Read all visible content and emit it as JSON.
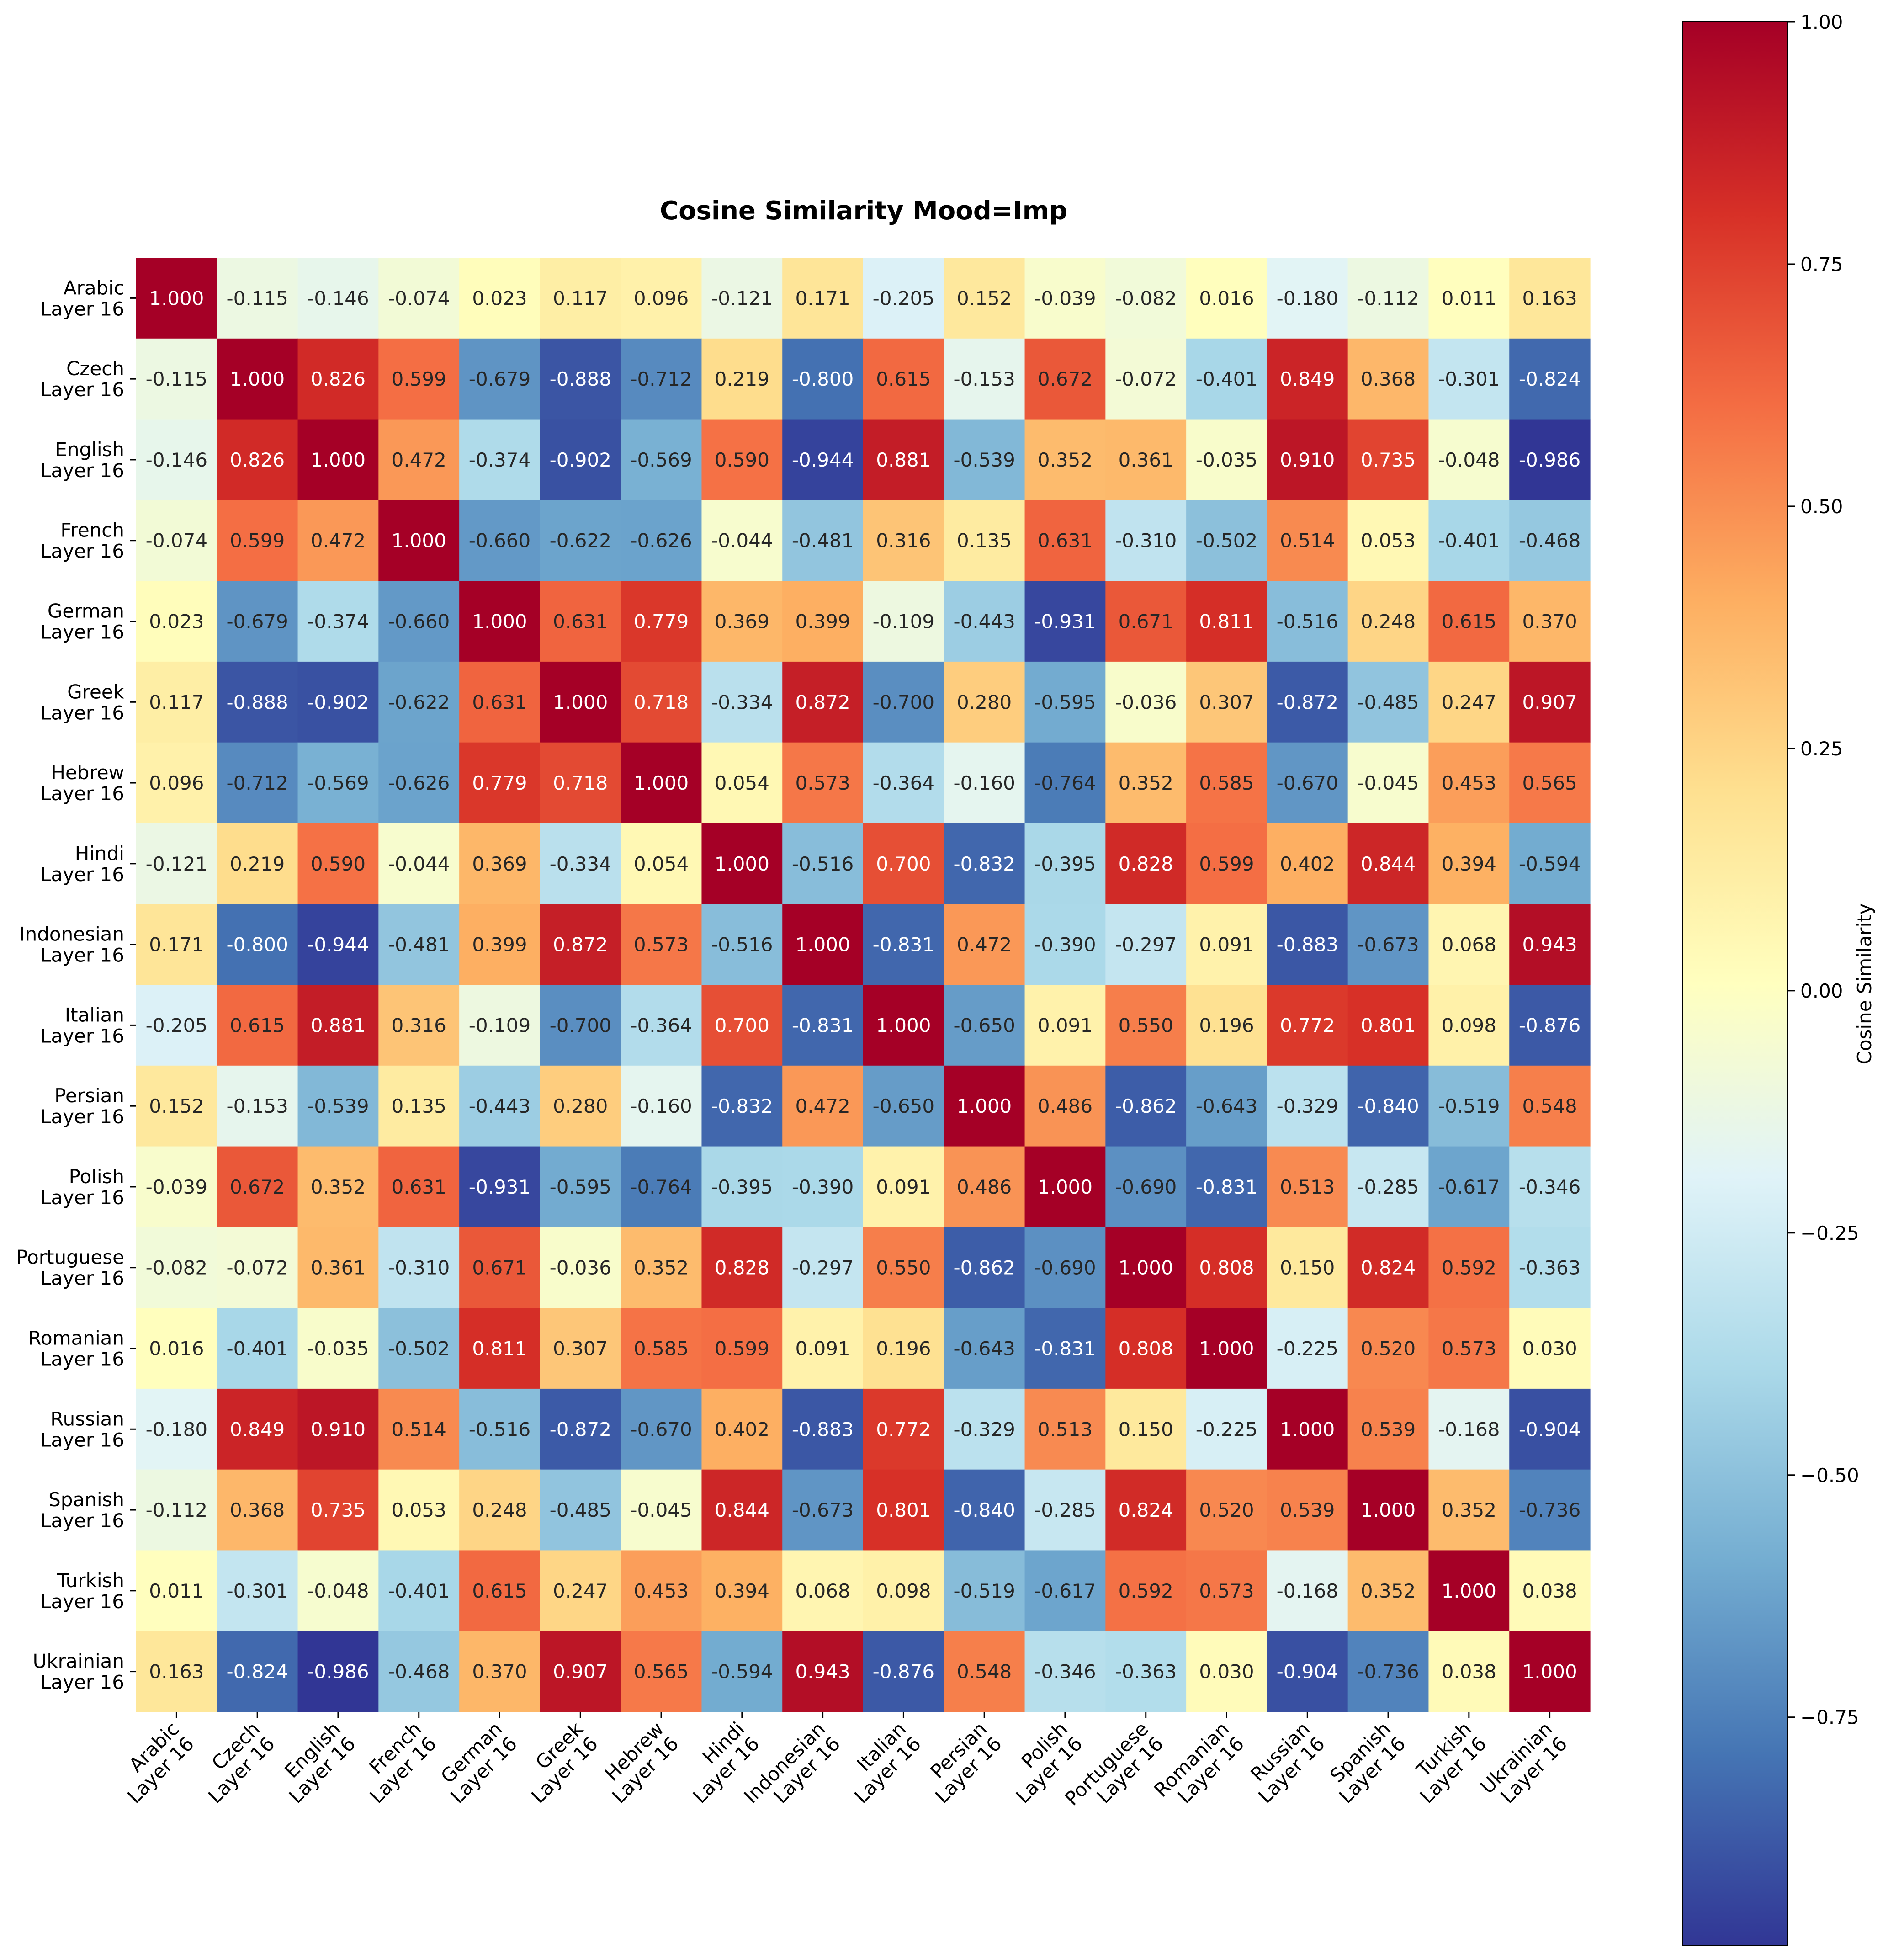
{
  "chart_data": {
    "type": "heatmap",
    "title": "Cosine Similarity Mood=Imp",
    "row_labels": [
      [
        "Arabic",
        "Layer 16"
      ],
      [
        "Czech",
        "Layer 16"
      ],
      [
        "English",
        "Layer 16"
      ],
      [
        "French",
        "Layer 16"
      ],
      [
        "German",
        "Layer 16"
      ],
      [
        "Greek",
        "Layer 16"
      ],
      [
        "Hebrew",
        "Layer 16"
      ],
      [
        "Hindi",
        "Layer 16"
      ],
      [
        "Indonesian",
        "Layer 16"
      ],
      [
        "Italian",
        "Layer 16"
      ],
      [
        "Persian",
        "Layer 16"
      ],
      [
        "Polish",
        "Layer 16"
      ],
      [
        "Portuguese",
        "Layer 16"
      ],
      [
        "Romanian",
        "Layer 16"
      ],
      [
        "Russian",
        "Layer 16"
      ],
      [
        "Spanish",
        "Layer 16"
      ],
      [
        "Turkish",
        "Layer 16"
      ],
      [
        "Ukrainian",
        "Layer 16"
      ]
    ],
    "col_labels": [
      [
        "Arabic",
        "Layer 16"
      ],
      [
        "Czech",
        "Layer 16"
      ],
      [
        "English",
        "Layer 16"
      ],
      [
        "French",
        "Layer 16"
      ],
      [
        "German",
        "Layer 16"
      ],
      [
        "Greek",
        "Layer 16"
      ],
      [
        "Hebrew",
        "Layer 16"
      ],
      [
        "Hindi",
        "Layer 16"
      ],
      [
        "Indonesian",
        "Layer 16"
      ],
      [
        "Italian",
        "Layer 16"
      ],
      [
        "Persian",
        "Layer 16"
      ],
      [
        "Polish",
        "Layer 16"
      ],
      [
        "Portuguese",
        "Layer 16"
      ],
      [
        "Romanian",
        "Layer 16"
      ],
      [
        "Russian",
        "Layer 16"
      ],
      [
        "Spanish",
        "Layer 16"
      ],
      [
        "Turkish",
        "Layer 16"
      ],
      [
        "Ukrainian",
        "Layer 16"
      ]
    ],
    "values": [
      [
        1.0,
        -0.115,
        -0.146,
        -0.074,
        0.023,
        0.117,
        0.096,
        -0.121,
        0.171,
        -0.205,
        0.152,
        -0.039,
        -0.082,
        0.016,
        -0.18,
        -0.112,
        0.011,
        0.163
      ],
      [
        -0.115,
        1.0,
        0.826,
        0.599,
        -0.679,
        -0.888,
        -0.712,
        0.219,
        -0.8,
        0.615,
        -0.153,
        0.672,
        -0.072,
        -0.401,
        0.849,
        0.368,
        -0.301,
        -0.824
      ],
      [
        -0.146,
        0.826,
        1.0,
        0.472,
        -0.374,
        -0.902,
        -0.569,
        0.59,
        -0.944,
        0.881,
        -0.539,
        0.352,
        0.361,
        -0.035,
        0.91,
        0.735,
        -0.048,
        -0.986
      ],
      [
        -0.074,
        0.599,
        0.472,
        1.0,
        -0.66,
        -0.622,
        -0.626,
        -0.044,
        -0.481,
        0.316,
        0.135,
        0.631,
        -0.31,
        -0.502,
        0.514,
        0.053,
        -0.401,
        -0.468
      ],
      [
        0.023,
        -0.679,
        -0.374,
        -0.66,
        1.0,
        0.631,
        0.779,
        0.369,
        0.399,
        -0.109,
        -0.443,
        -0.931,
        0.671,
        0.811,
        -0.516,
        0.248,
        0.615,
        0.37
      ],
      [
        0.117,
        -0.888,
        -0.902,
        -0.622,
        0.631,
        1.0,
        0.718,
        -0.334,
        0.872,
        -0.7,
        0.28,
        -0.595,
        -0.036,
        0.307,
        -0.872,
        -0.485,
        0.247,
        0.907
      ],
      [
        0.096,
        -0.712,
        -0.569,
        -0.626,
        0.779,
        0.718,
        1.0,
        0.054,
        0.573,
        -0.364,
        -0.16,
        -0.764,
        0.352,
        0.585,
        -0.67,
        -0.045,
        0.453,
        0.565
      ],
      [
        -0.121,
        0.219,
        0.59,
        -0.044,
        0.369,
        -0.334,
        0.054,
        1.0,
        -0.516,
        0.7,
        -0.832,
        -0.395,
        0.828,
        0.599,
        0.402,
        0.844,
        0.394,
        -0.594
      ],
      [
        0.171,
        -0.8,
        -0.944,
        -0.481,
        0.399,
        0.872,
        0.573,
        -0.516,
        1.0,
        -0.831,
        0.472,
        -0.39,
        -0.297,
        0.091,
        -0.883,
        -0.673,
        0.068,
        0.943
      ],
      [
        -0.205,
        0.615,
        0.881,
        0.316,
        -0.109,
        -0.7,
        -0.364,
        0.7,
        -0.831,
        1.0,
        -0.65,
        0.091,
        0.55,
        0.196,
        0.772,
        0.801,
        0.098,
        -0.876
      ],
      [
        0.152,
        -0.153,
        -0.539,
        0.135,
        -0.443,
        0.28,
        -0.16,
        -0.832,
        0.472,
        -0.65,
        1.0,
        0.486,
        -0.862,
        -0.643,
        -0.329,
        -0.84,
        -0.519,
        0.548
      ],
      [
        -0.039,
        0.672,
        0.352,
        0.631,
        -0.931,
        -0.595,
        -0.764,
        -0.395,
        -0.39,
        0.091,
        0.486,
        1.0,
        -0.69,
        -0.831,
        0.513,
        -0.285,
        -0.617,
        -0.346
      ],
      [
        -0.082,
        -0.072,
        0.361,
        -0.31,
        0.671,
        -0.036,
        0.352,
        0.828,
        -0.297,
        0.55,
        -0.862,
        -0.69,
        1.0,
        0.808,
        0.15,
        0.824,
        0.592,
        -0.363
      ],
      [
        0.016,
        -0.401,
        -0.035,
        -0.502,
        0.811,
        0.307,
        0.585,
        0.599,
        0.091,
        0.196,
        -0.643,
        -0.831,
        0.808,
        1.0,
        -0.225,
        0.52,
        0.573,
        0.03
      ],
      [
        -0.18,
        0.849,
        0.91,
        0.514,
        -0.516,
        -0.872,
        -0.67,
        0.402,
        -0.883,
        0.772,
        -0.329,
        0.513,
        0.15,
        -0.225,
        1.0,
        0.539,
        -0.168,
        -0.904
      ],
      [
        -0.112,
        0.368,
        0.735,
        0.053,
        0.248,
        -0.485,
        -0.045,
        0.844,
        -0.673,
        0.801,
        -0.84,
        -0.285,
        0.824,
        0.52,
        0.539,
        1.0,
        0.352,
        -0.736
      ],
      [
        0.011,
        -0.301,
        -0.048,
        -0.401,
        0.615,
        0.247,
        0.453,
        0.394,
        0.068,
        0.098,
        -0.519,
        -0.617,
        0.592,
        0.573,
        -0.168,
        0.352,
        1.0,
        0.038
      ],
      [
        0.163,
        -0.824,
        -0.986,
        -0.468,
        0.37,
        0.907,
        0.565,
        -0.594,
        0.943,
        -0.876,
        0.548,
        -0.346,
        -0.363,
        0.03,
        -0.904,
        -0.736,
        0.038,
        1.0
      ]
    ],
    "value_format": "3 decimals",
    "colormap": "RdYlBu_r",
    "colormap_stops": [
      "#313695",
      "#4575b4",
      "#74add1",
      "#abd9e9",
      "#e0f3f8",
      "#ffffbf",
      "#fee090",
      "#fdae61",
      "#f46d43",
      "#d73027",
      "#a50026"
    ],
    "vmin": -0.986,
    "vmax": 1.0,
    "colorbar": {
      "label": "Cosine Similarity",
      "ticks": [
        1.0,
        0.75,
        0.5,
        0.25,
        0.0,
        -0.25,
        -0.5,
        -0.75
      ],
      "tick_labels": [
        "1.00",
        "0.75",
        "0.50",
        "0.25",
        "0.00",
        "−0.25",
        "−0.50",
        "−0.75"
      ]
    }
  }
}
